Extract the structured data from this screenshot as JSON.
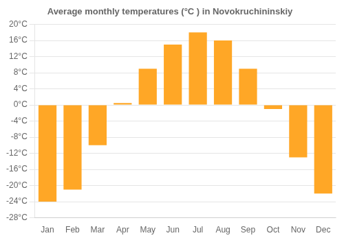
{
  "chart_data": {
    "type": "bar",
    "title": "Average monthly temperatures (°C ) in Novokruchininskiy",
    "categories": [
      "Jan",
      "Feb",
      "Mar",
      "Apr",
      "May",
      "Jun",
      "Jul",
      "Aug",
      "Sep",
      "Oct",
      "Nov",
      "Dec"
    ],
    "values": [
      -24,
      -21,
      -10,
      0.5,
      9,
      15,
      18,
      16,
      9,
      -1,
      -13,
      -22
    ],
    "color": "#FFA726",
    "ylim": [
      -28,
      20
    ],
    "yticks": [
      {
        "value": -28,
        "label": "-28°C"
      },
      {
        "value": -24,
        "label": "-24°C"
      },
      {
        "value": -20,
        "label": "-20°C"
      },
      {
        "value": -16,
        "label": "-16°C"
      },
      {
        "value": -12,
        "label": "-12°C"
      },
      {
        "value": -8,
        "label": "-8°C"
      },
      {
        "value": -4,
        "label": "-4°C"
      },
      {
        "value": 0,
        "label": "0°C"
      },
      {
        "value": 4,
        "label": "4°C"
      },
      {
        "value": 8,
        "label": "8°C"
      },
      {
        "value": 12,
        "label": "12°C"
      },
      {
        "value": 16,
        "label": "16°C"
      },
      {
        "value": 20,
        "label": "20°C"
      }
    ],
    "grid": true
  }
}
